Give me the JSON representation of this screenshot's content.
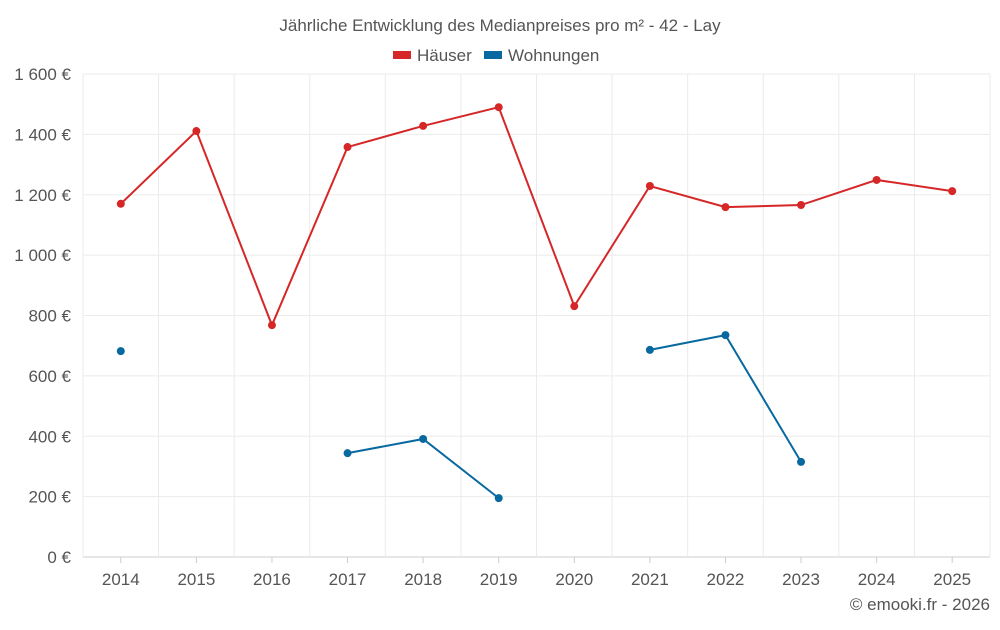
{
  "chart_data": {
    "type": "line",
    "title": "Jährliche Entwicklung des Medianpreises pro m² - 42 - Lay",
    "xlabel": "",
    "ylabel": "",
    "categories": [
      "2014",
      "2015",
      "2016",
      "2017",
      "2018",
      "2019",
      "2020",
      "2021",
      "2022",
      "2023",
      "2024",
      "2025"
    ],
    "ylim": [
      0,
      1600
    ],
    "yticks": [
      0,
      200,
      400,
      600,
      800,
      1000,
      1200,
      1400,
      1600
    ],
    "ytick_labels": [
      "0 €",
      "200 €",
      "400 €",
      "600 €",
      "800 €",
      "1 000 €",
      "1 200 €",
      "1 400 €",
      "1 600 €"
    ],
    "grid": true,
    "legend_position": "top-center",
    "series": [
      {
        "name": "Häuser",
        "color": "#d62728",
        "values": [
          1170,
          1411,
          768,
          1358,
          1428,
          1490,
          831,
          1229,
          1159,
          1166,
          1249,
          1212
        ]
      },
      {
        "name": "Wohnungen",
        "color": "#0868a0",
        "values": [
          682,
          null,
          null,
          344,
          391,
          195,
          null,
          686,
          735,
          315,
          null,
          null
        ]
      }
    ],
    "credit": "© emooki.fr - 2026"
  }
}
